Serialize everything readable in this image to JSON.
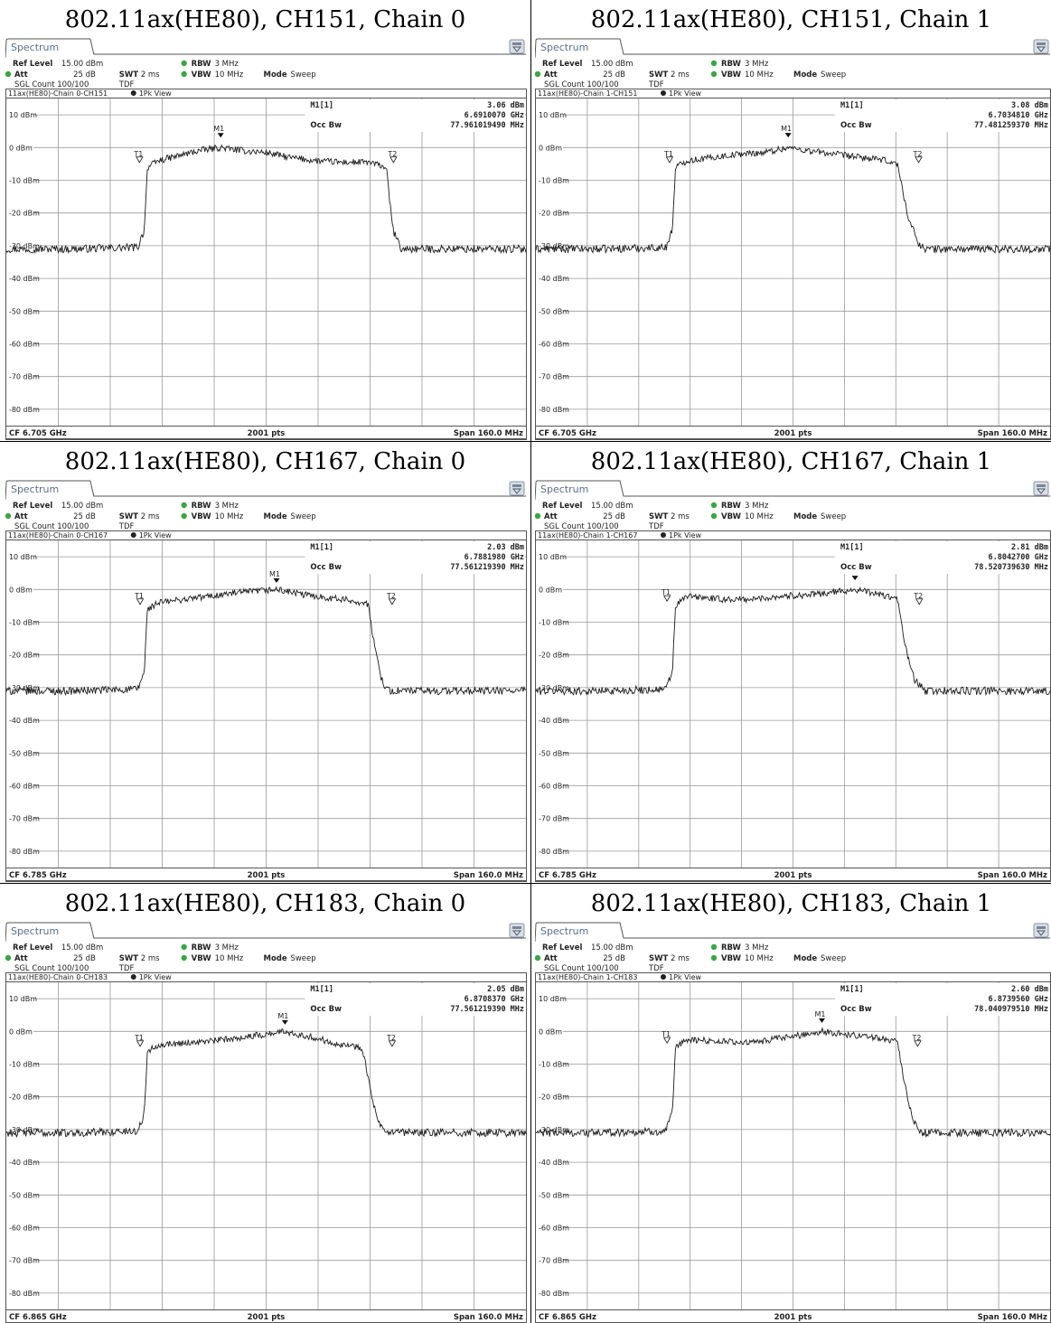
{
  "panels": [
    {
      "title": "802.11ax(HE80), CH151, Chain 0",
      "tab_label": "Spectrum",
      "settings": {
        "ref_level_label": "Ref Level",
        "ref_level_value": "15.00 dBm",
        "att_label": "Att",
        "att_value": "25 dB",
        "swt_label": "SWT",
        "swt_value": "2 ms",
        "rbw_label": "RBW",
        "rbw_value": "3 MHz",
        "vbw_label": "VBW",
        "vbw_value": "10 MHz",
        "mode_label": "Mode",
        "mode_value": "Sweep",
        "sgl_count": "SGL Count 100/100",
        "tdf": "TDF"
      },
      "trace_header": "11ax(HE80)-Chain 0-CH151",
      "view_label": "1Pk View",
      "marker": {
        "label": "M1[1]",
        "level": "3.06 dBm",
        "freq": "6.6910070 GHz",
        "occbw_label": "Occ Bw",
        "occbw_value": "77.961019490 MHz"
      },
      "markers_on_plot": {
        "m1": "M1",
        "t1": "T1",
        "t2": "T2"
      },
      "footer": {
        "cf": "CF 6.705 GHz",
        "pts": "2001 pts",
        "span": "Span 160.0 MHz"
      },
      "chart_data": {
        "type": "line",
        "x_unit": "GHz",
        "y_unit": "dBm",
        "xlim": [
          6.625,
          6.785
        ],
        "ylim": [
          -85,
          15
        ],
        "y_ticks": [
          "10 dBm",
          "0 dBm",
          "-10 dBm",
          "-20 dBm",
          "-30 dBm",
          "-40 dBm",
          "-50 dBm",
          "-60 dBm",
          "-70 dBm",
          "-80 dBm"
        ],
        "y_tick_values": [
          10,
          0,
          -10,
          -20,
          -30,
          -40,
          -50,
          -60,
          -70,
          -80
        ],
        "trace": {
          "x": [
            6.625,
            6.645,
            6.6655,
            6.6675,
            6.668,
            6.6685,
            6.672,
            6.678,
            6.684,
            6.691,
            6.698,
            6.705,
            6.712,
            6.72,
            6.728,
            6.7365,
            6.742,
            6.7425,
            6.744,
            6.7465,
            6.765,
            6.785
          ],
          "y": [
            -31,
            -31,
            -30.5,
            -25,
            -14,
            -6,
            -4,
            -2.5,
            -1,
            0,
            -1,
            -1.5,
            -3,
            -4,
            -4.5,
            -4.5,
            -6,
            -11,
            -25,
            -31,
            -31,
            -31
          ]
        },
        "markers": [
          {
            "name": "M1",
            "x": 6.691,
            "y": 3.06
          },
          {
            "name": "T1",
            "x": 6.666,
            "y": -4
          },
          {
            "name": "T2",
            "x": 6.7442,
            "y": -4
          }
        ]
      }
    },
    {
      "title": "802.11ax(HE80), CH151, Chain 1",
      "tab_label": "Spectrum",
      "settings": {
        "ref_level_label": "Ref Level",
        "ref_level_value": "15.00 dBm",
        "att_label": "Att",
        "att_value": "25 dB",
        "swt_label": "SWT",
        "swt_value": "2 ms",
        "rbw_label": "RBW",
        "rbw_value": "3 MHz",
        "vbw_label": "VBW",
        "vbw_value": "10 MHz",
        "mode_label": "Mode",
        "mode_value": "Sweep",
        "sgl_count": "SGL Count 100/100",
        "tdf": "TDF"
      },
      "trace_header": "11ax(HE80)-Chain 1-CH151",
      "view_label": "1Pk View",
      "marker": {
        "label": "M1[1]",
        "level": "3.08 dBm",
        "freq": "6.7034810 GHz",
        "occbw_label": "Occ Bw",
        "occbw_value": "77.481259370 MHz"
      },
      "markers_on_plot": {
        "m1": "M1",
        "t1": "T1",
        "t2": "T2"
      },
      "footer": {
        "cf": "CF 6.705 GHz",
        "pts": "2001 pts",
        "span": "Span 160.0 MHz"
      },
      "chart_data": {
        "type": "line",
        "x_unit": "GHz",
        "y_unit": "dBm",
        "xlim": [
          6.625,
          6.785
        ],
        "ylim": [
          -85,
          15
        ],
        "y_ticks": [
          "10 dBm",
          "0 dBm",
          "-10 dBm",
          "-20 dBm",
          "-30 dBm",
          "-40 dBm",
          "-50 dBm",
          "-60 dBm",
          "-70 dBm",
          "-80 dBm"
        ],
        "y_tick_values": [
          10,
          0,
          -10,
          -20,
          -30,
          -40,
          -50,
          -60,
          -70,
          -80
        ],
        "trace": {
          "x": [
            6.625,
            6.645,
            6.6655,
            6.6675,
            6.668,
            6.6685,
            6.672,
            6.68,
            6.688,
            6.696,
            6.7035,
            6.71,
            6.718,
            6.726,
            6.734,
            6.7375,
            6.7385,
            6.741,
            6.744,
            6.746,
            6.765,
            6.785
          ],
          "y": [
            -31,
            -31,
            -30.5,
            -25,
            -14,
            -6,
            -4,
            -3,
            -2,
            -1.5,
            0,
            -1,
            -2,
            -3,
            -4,
            -5,
            -10,
            -22,
            -29,
            -31,
            -31,
            -31
          ]
        },
        "markers": [
          {
            "name": "M1",
            "x": 6.7035,
            "y": 3.08
          },
          {
            "name": "T1",
            "x": 6.6666,
            "y": -4
          },
          {
            "name": "T2",
            "x": 6.7441,
            "y": -4
          }
        ]
      }
    },
    {
      "title": "802.11ax(HE80), CH167, Chain 0",
      "tab_label": "Spectrum",
      "settings": {
        "ref_level_label": "Ref Level",
        "ref_level_value": "15.00 dBm",
        "att_label": "Att",
        "att_value": "25 dB",
        "swt_label": "SWT",
        "swt_value": "2 ms",
        "rbw_label": "RBW",
        "rbw_value": "3 MHz",
        "vbw_label": "VBW",
        "vbw_value": "10 MHz",
        "mode_label": "Mode",
        "mode_value": "Sweep",
        "sgl_count": "SGL Count 100/100",
        "tdf": "TDF"
      },
      "trace_header": "11ax(HE80)-Chain 0-CH167",
      "view_label": "1Pk View",
      "marker": {
        "label": "M1[1]",
        "level": "2.03 dBm",
        "freq": "6.7881980 GHz",
        "occbw_label": "Occ Bw",
        "occbw_value": "77.561219390 MHz"
      },
      "markers_on_plot": {
        "m1": "M1",
        "t1": "T1",
        "t2": "T2"
      },
      "footer": {
        "cf": "CF 6.785 GHz",
        "pts": "2001 pts",
        "span": "Span 160.0 MHz"
      },
      "chart_data": {
        "type": "line",
        "x_unit": "GHz",
        "y_unit": "dBm",
        "xlim": [
          6.705,
          6.865
        ],
        "ylim": [
          -85,
          15
        ],
        "y_ticks": [
          "10 dBm",
          "0 dBm",
          "-10 dBm",
          "-20 dBm",
          "-30 dBm",
          "-40 dBm",
          "-50 dBm",
          "-60 dBm",
          "-70 dBm",
          "-80 dBm"
        ],
        "y_tick_values": [
          10,
          0,
          -10,
          -20,
          -30,
          -40,
          -50,
          -60,
          -70,
          -80
        ],
        "trace": {
          "x": [
            6.705,
            6.725,
            6.7455,
            6.7475,
            6.748,
            6.7485,
            6.752,
            6.76,
            6.768,
            6.776,
            6.7882,
            6.796,
            6.804,
            6.812,
            6.8165,
            6.817,
            6.8185,
            6.8205,
            6.8225,
            6.845,
            6.865
          ],
          "y": [
            -31,
            -31,
            -30.5,
            -25,
            -14,
            -6,
            -4,
            -3,
            -2,
            -1,
            0,
            -1.5,
            -2.5,
            -3.5,
            -4.5,
            -9,
            -18,
            -27,
            -31,
            -31,
            -31
          ]
        },
        "markers": [
          {
            "name": "M1",
            "x": 6.7882,
            "y": 2.03
          },
          {
            "name": "T1",
            "x": 6.7462,
            "y": -4
          },
          {
            "name": "T2",
            "x": 6.8238,
            "y": -4
          }
        ]
      }
    },
    {
      "title": "802.11ax(HE80), CH167, Chain 1",
      "tab_label": "Spectrum",
      "settings": {
        "ref_level_label": "Ref Level",
        "ref_level_value": "15.00 dBm",
        "att_label": "Att",
        "att_value": "25 dB",
        "swt_label": "SWT",
        "swt_value": "2 ms",
        "rbw_label": "RBW",
        "rbw_value": "3 MHz",
        "vbw_label": "VBW",
        "vbw_value": "10 MHz",
        "mode_label": "Mode",
        "mode_value": "Sweep",
        "sgl_count": "SGL Count 100/100",
        "tdf": "TDF"
      },
      "trace_header": "11ax(HE80)-Chain 1-CH167",
      "view_label": "1Pk View",
      "marker": {
        "label": "M1[1]",
        "level": "2.81 dBm",
        "freq": "6.8042700 GHz",
        "occbw_label": "Occ Bw",
        "occbw_value": "78.520739630 MHz"
      },
      "markers_on_plot": {
        "m1": "M1",
        "t1": "T1",
        "t2": "T2"
      },
      "footer": {
        "cf": "CF 6.785 GHz",
        "pts": "2001 pts",
        "span": "Span 160.0 MHz"
      },
      "chart_data": {
        "type": "line",
        "x_unit": "GHz",
        "y_unit": "dBm",
        "xlim": [
          6.705,
          6.865
        ],
        "ylim": [
          -85,
          15
        ],
        "y_ticks": [
          "10 dBm",
          "0 dBm",
          "-10 dBm",
          "-20 dBm",
          "-30 dBm",
          "-40 dBm",
          "-50 dBm",
          "-60 dBm",
          "-70 dBm",
          "-80 dBm"
        ],
        "y_tick_values": [
          10,
          0,
          -10,
          -20,
          -30,
          -40,
          -50,
          -60,
          -70,
          -80
        ],
        "trace": {
          "x": [
            6.705,
            6.725,
            6.7455,
            6.7475,
            6.748,
            6.7485,
            6.752,
            6.762,
            6.772,
            6.782,
            6.792,
            6.8043,
            6.812,
            6.8175,
            6.8185,
            6.8205,
            6.823,
            6.826,
            6.845,
            6.865
          ],
          "y": [
            -31,
            -31,
            -30.5,
            -25,
            -14,
            -5,
            -2,
            -3,
            -3,
            -2,
            -1.5,
            0,
            -1.5,
            -3,
            -9,
            -20,
            -28,
            -31,
            -31,
            -31
          ]
        },
        "markers": [
          {
            "name": "M1",
            "x": 6.8043,
            "y": 2.81
          },
          {
            "name": "T1",
            "x": 6.7458,
            "y": -3
          },
          {
            "name": "T2",
            "x": 6.8243,
            "y": -4
          }
        ]
      }
    },
    {
      "title": "802.11ax(HE80), CH183, Chain 0",
      "tab_label": "Spectrum",
      "settings": {
        "ref_level_label": "Ref Level",
        "ref_level_value": "15.00 dBm",
        "att_label": "Att",
        "att_value": "25 dB",
        "swt_label": "SWT",
        "swt_value": "2 ms",
        "rbw_label": "RBW",
        "rbw_value": "3 MHz",
        "vbw_label": "VBW",
        "vbw_value": "10 MHz",
        "mode_label": "Mode",
        "mode_value": "Sweep",
        "sgl_count": "SGL Count 100/100",
        "tdf": "TDF"
      },
      "trace_header": "11ax(HE80)-Chain 0-CH183",
      "view_label": "1Pk View",
      "marker": {
        "label": "M1[1]",
        "level": "2.05 dBm",
        "freq": "6.8708370 GHz",
        "occbw_label": "Occ Bw",
        "occbw_value": "77.561219390 MHz"
      },
      "markers_on_plot": {
        "m1": "M1",
        "t1": "T1",
        "t2": "T2"
      },
      "footer": {
        "cf": "CF 6.865 GHz",
        "pts": "2001 pts",
        "span": "Span 160.0 MHz"
      },
      "chart_data": {
        "type": "line",
        "x_unit": "GHz",
        "y_unit": "dBm",
        "xlim": [
          6.785,
          6.945
        ],
        "ylim": [
          -85,
          15
        ],
        "y_ticks": [
          "10 dBm",
          "0 dBm",
          "-10 dBm",
          "-20 dBm",
          "-30 dBm",
          "-40 dBm",
          "-50 dBm",
          "-60 dBm",
          "-70 dBm",
          "-80 dBm"
        ],
        "y_tick_values": [
          10,
          0,
          -10,
          -20,
          -30,
          -40,
          -50,
          -60,
          -70,
          -80
        ],
        "trace": {
          "x": [
            6.785,
            6.805,
            6.8255,
            6.8275,
            6.828,
            6.8285,
            6.832,
            6.84,
            6.848,
            6.856,
            6.864,
            6.8708,
            6.878,
            6.886,
            6.8945,
            6.8955,
            6.8975,
            6.8995,
            6.9015,
            6.925,
            6.945
          ],
          "y": [
            -31,
            -31,
            -30.5,
            -25,
            -14,
            -6,
            -4,
            -3.5,
            -3,
            -2,
            -1,
            0,
            -1.5,
            -3.5,
            -5,
            -9,
            -20,
            -28,
            -31,
            -31,
            -31
          ]
        },
        "markers": [
          {
            "name": "M1",
            "x": 6.8708,
            "y": 2.05
          },
          {
            "name": "T1",
            "x": 6.8262,
            "y": -4
          },
          {
            "name": "T2",
            "x": 6.9038,
            "y": -4
          }
        ]
      }
    },
    {
      "title": "802.11ax(HE80), CH183, Chain 1",
      "tab_label": "Spectrum",
      "settings": {
        "ref_level_label": "Ref Level",
        "ref_level_value": "15.00 dBm",
        "att_label": "Att",
        "att_value": "25 dB",
        "swt_label": "SWT",
        "swt_value": "2 ms",
        "rbw_label": "RBW",
        "rbw_value": "3 MHz",
        "vbw_label": "VBW",
        "vbw_value": "10 MHz",
        "mode_label": "Mode",
        "mode_value": "Sweep",
        "sgl_count": "SGL Count 100/100",
        "tdf": "TDF"
      },
      "trace_header": "11ax(HE80)-Chain 1-CH183",
      "view_label": "1Pk View",
      "marker": {
        "label": "M1[1]",
        "level": "2.60 dBm",
        "freq": "6.8739560 GHz",
        "occbw_label": "Occ Bw",
        "occbw_value": "78.040979510 MHz"
      },
      "markers_on_plot": {
        "m1": "M1",
        "t1": "T1",
        "t2": "T2"
      },
      "footer": {
        "cf": "CF 6.865 GHz",
        "pts": "2001 pts",
        "span": "Span 160.0 MHz"
      },
      "chart_data": {
        "type": "line",
        "x_unit": "GHz",
        "y_unit": "dBm",
        "xlim": [
          6.785,
          6.945
        ],
        "ylim": [
          -85,
          15
        ],
        "y_ticks": [
          "10 dBm",
          "0 dBm",
          "-10 dBm",
          "-20 dBm",
          "-30 dBm",
          "-40 dBm",
          "-50 dBm",
          "-60 dBm",
          "-70 dBm",
          "-80 dBm"
        ],
        "y_tick_values": [
          10,
          0,
          -10,
          -20,
          -30,
          -40,
          -50,
          -60,
          -70,
          -80
        ],
        "trace": {
          "x": [
            6.785,
            6.805,
            6.8255,
            6.8275,
            6.828,
            6.8285,
            6.832,
            6.842,
            6.852,
            6.862,
            6.874,
            6.882,
            6.892,
            6.8975,
            6.8985,
            6.9005,
            6.9025,
            6.905,
            6.925,
            6.945
          ],
          "y": [
            -31,
            -31,
            -30.5,
            -25,
            -14,
            -5,
            -2.5,
            -3,
            -3.5,
            -2,
            0,
            -1,
            -2,
            -3,
            -9,
            -20,
            -28,
            -31,
            -31,
            -31
          ]
        },
        "markers": [
          {
            "name": "M1",
            "x": 6.874,
            "y": 2.6
          },
          {
            "name": "T1",
            "x": 6.8258,
            "y": -3
          },
          {
            "name": "T2",
            "x": 6.9038,
            "y": -4
          }
        ]
      }
    }
  ],
  "colors": {
    "frame": "#555555",
    "grid": "#9a9a9a",
    "trace": "#1a1a1a",
    "text": "#222222",
    "tab_text": "#5b6f86",
    "status_green": "#3aa645",
    "icon_bg": "#d9dee6"
  }
}
